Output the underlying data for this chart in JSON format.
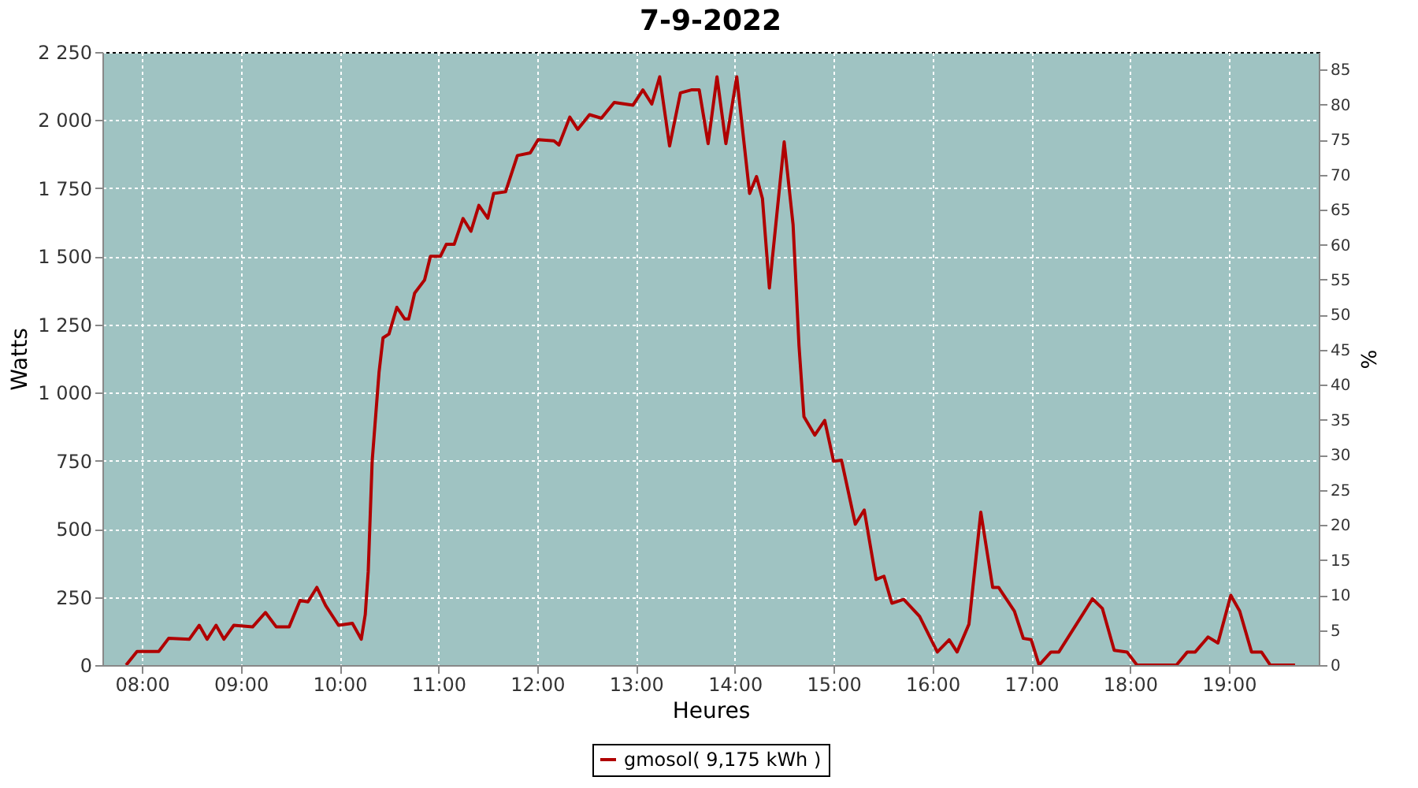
{
  "chart_data": {
    "type": "line",
    "title": "7-9-2022",
    "xlabel": "Heures",
    "ylabel": "Watts",
    "y2label": "%",
    "x": [
      7.84,
      7.95,
      8.17,
      8.27,
      8.48,
      8.58,
      8.66,
      8.75,
      8.83,
      8.93,
      9.12,
      9.25,
      9.36,
      9.49,
      9.6,
      9.68,
      9.77,
      9.86,
      9.99,
      10.13,
      10.22,
      10.26,
      10.29,
      10.33,
      10.4,
      10.44,
      10.5,
      10.58,
      10.66,
      10.7,
      10.76,
      10.86,
      10.92,
      11.02,
      11.08,
      11.16,
      11.25,
      11.33,
      11.41,
      11.5,
      11.56,
      11.68,
      11.8,
      11.93,
      12.01,
      12.17,
      12.22,
      12.33,
      12.41,
      12.53,
      12.65,
      12.78,
      12.97,
      13.07,
      13.16,
      13.24,
      13.34,
      13.45,
      13.56,
      13.64,
      13.73,
      13.82,
      13.91,
      14.02,
      14.15,
      14.22,
      14.28,
      14.35,
      14.5,
      14.59,
      14.65,
      14.7,
      14.81,
      14.91,
      15.0,
      15.08,
      15.22,
      15.31,
      15.43,
      15.51,
      15.59,
      15.71,
      15.87,
      16.05,
      16.17,
      16.25,
      16.37,
      16.49,
      16.61,
      16.67,
      16.83,
      16.92,
      17.0,
      17.08,
      17.2,
      17.28,
      17.62,
      17.72,
      17.84,
      17.97,
      18.07,
      18.47,
      18.58,
      18.66,
      18.79,
      18.89,
      19.02,
      19.11,
      19.23,
      19.33,
      19.42,
      19.67
    ],
    "series": [
      {
        "name": "gmosol( 9,175 kWh )",
        "color": "#b00000",
        "values": [
          0,
          50,
          50,
          98,
          95,
          146,
          95,
          146,
          95,
          146,
          140,
          193,
          140,
          140,
          237,
          232,
          285,
          218,
          146,
          153,
          95,
          185,
          343,
          748,
          1076,
          1201,
          1215,
          1313,
          1270,
          1270,
          1365,
          1413,
          1500,
          1500,
          1544,
          1544,
          1639,
          1592,
          1687,
          1640,
          1731,
          1737,
          1870,
          1880,
          1928,
          1924,
          1909,
          2011,
          1966,
          2020,
          2007,
          2065,
          2055,
          2111,
          2059,
          2159,
          1905,
          2100,
          2111,
          2111,
          1914,
          2159,
          1914,
          2159,
          1731,
          1793,
          1712,
          1384,
          1920,
          1616,
          1172,
          912,
          844,
          898,
          748,
          752,
          517,
          569,
          314,
          326,
          227,
          241,
          179,
          48,
          93,
          48,
          150,
          561,
          285,
          285,
          198,
          98,
          93,
          0,
          48,
          48,
          243,
          208,
          54,
          48,
          0,
          0,
          48,
          48,
          103,
          81,
          256,
          198,
          48,
          48,
          0,
          0
        ]
      }
    ],
    "xlim": [
      7.6,
      19.91
    ],
    "xticks": [
      {
        "value": 8,
        "label": "08:00"
      },
      {
        "value": 9,
        "label": "09:00"
      },
      {
        "value": 10,
        "label": "10:00"
      },
      {
        "value": 11,
        "label": "11:00"
      },
      {
        "value": 12,
        "label": "12:00"
      },
      {
        "value": 13,
        "label": "13:00"
      },
      {
        "value": 14,
        "label": "14:00"
      },
      {
        "value": 15,
        "label": "15:00"
      },
      {
        "value": 16,
        "label": "16:00"
      },
      {
        "value": 17,
        "label": "17:00"
      },
      {
        "value": 18,
        "label": "18:00"
      },
      {
        "value": 19,
        "label": "19:00"
      }
    ],
    "ylim": [
      0,
      2250
    ],
    "yticks": [
      0,
      250,
      500,
      750,
      {
        "value": 1000,
        "label": "1 000"
      },
      {
        "value": 1250,
        "label": "1 250"
      },
      {
        "value": 1500,
        "label": "1 500"
      },
      {
        "value": 1750,
        "label": "1 750"
      },
      {
        "value": 2000,
        "label": "2 000"
      },
      {
        "value": 2250,
        "label": "2 250"
      }
    ],
    "y2lim": [
      0,
      87.5
    ],
    "y2ticks": [
      0,
      5,
      10,
      15,
      20,
      25,
      30,
      35,
      40,
      45,
      50,
      55,
      60,
      65,
      70,
      75,
      80,
      85
    ],
    "grid": true,
    "legend": "bottom",
    "line_style": "solid",
    "marker": "none"
  }
}
